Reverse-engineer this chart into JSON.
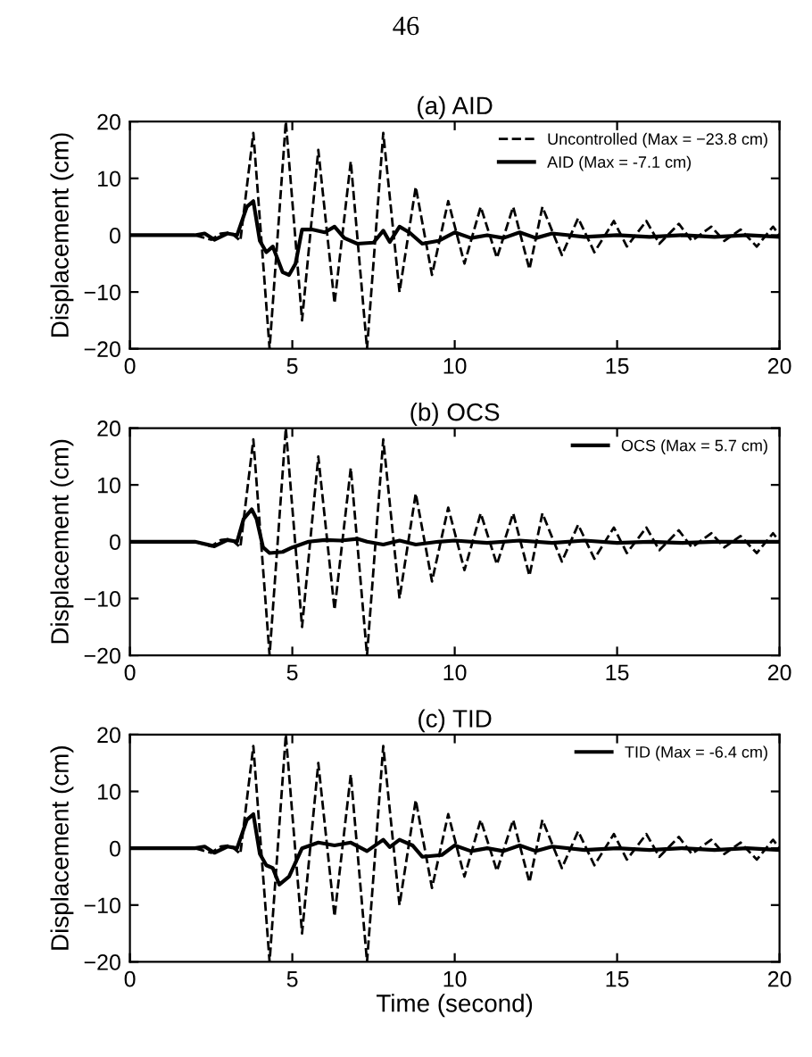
{
  "chart_data": [
    {
      "type": "line",
      "title": "(a) AID",
      "ylabel": "Displacement (cm)",
      "annotations": [
        "46"
      ],
      "xlim": [
        0,
        20
      ],
      "xticks": [
        0,
        5,
        10,
        15,
        20
      ],
      "ylim": [
        -20,
        20
      ],
      "yticks": [
        -20,
        -10,
        0,
        10,
        20
      ],
      "grid": false,
      "legend": "top right",
      "series": [
        {
          "name": "Uncontrolled (Max = −23.8 cm)",
          "color": "#000000",
          "line_style": "dashed",
          "x": [
            0,
            1,
            2,
            2.5,
            2.8,
            3.1,
            3.4,
            3.8,
            4.3,
            4.8,
            5.3,
            5.8,
            6.3,
            6.8,
            7.3,
            7.8,
            8.3,
            8.8,
            9.3,
            9.8,
            10.3,
            10.8,
            11.3,
            11.8,
            12.3,
            12.7,
            13.3,
            13.8,
            14.3,
            14.9,
            15.3,
            15.9,
            16.3,
            16.9,
            17.3,
            17.9,
            18.3,
            18.8,
            19.3,
            19.8,
            20
          ],
          "values": [
            0,
            0,
            0,
            -0.8,
            0.3,
            0.5,
            -1,
            18,
            -20,
            20,
            -15,
            15,
            -12,
            13,
            -20,
            18,
            -10,
            8.5,
            -7,
            6,
            -5,
            5,
            -4,
            5,
            -6,
            5,
            -3.5,
            3,
            -3,
            2.5,
            -2,
            2.5,
            -1.5,
            2,
            -1,
            1.5,
            -1,
            1,
            -2,
            1.5,
            0
          ]
        },
        {
          "name": "AID (Max = -7.1 cm)",
          "color": "#000000",
          "line_style": "solid",
          "x": [
            0,
            2,
            2.3,
            2.6,
            3.0,
            3.3,
            3.6,
            3.8,
            4.0,
            4.2,
            4.4,
            4.7,
            4.9,
            5.1,
            5.3,
            5.6,
            6.0,
            6.3,
            6.6,
            7.0,
            7.5,
            7.8,
            8.0,
            8.3,
            8.6,
            9.0,
            9.5,
            10,
            10.5,
            11,
            11.5,
            12,
            12.5,
            13,
            14,
            15,
            16,
            17,
            18,
            19,
            20
          ],
          "values": [
            0,
            0,
            0.3,
            -0.8,
            0.3,
            0,
            5,
            6,
            -1,
            -3,
            -2,
            -6.5,
            -7,
            -5,
            1,
            1,
            0.5,
            1.5,
            -0.5,
            -1.5,
            -1.3,
            0.8,
            -1.2,
            1.5,
            0.5,
            -1.5,
            -1,
            0.5,
            -0.5,
            0,
            -0.5,
            0.5,
            -0.5,
            0.3,
            -0.3,
            0,
            -0.3,
            0,
            -0.3,
            0,
            -0.3
          ]
        }
      ]
    },
    {
      "type": "line",
      "title": "(b) OCS",
      "ylabel": "Displacement (cm)",
      "xlim": [
        0,
        20
      ],
      "xticks": [
        0,
        5,
        10,
        15,
        20
      ],
      "ylim": [
        -20,
        20
      ],
      "yticks": [
        -20,
        -10,
        0,
        10,
        20
      ],
      "grid": false,
      "legend": "top right",
      "series": [
        {
          "color": "#000000",
          "line_style": "dashed",
          "x": [
            0,
            1,
            2,
            2.5,
            2.8,
            3.1,
            3.4,
            3.8,
            4.3,
            4.8,
            5.3,
            5.8,
            6.3,
            6.8,
            7.3,
            7.8,
            8.3,
            8.8,
            9.3,
            9.8,
            10.3,
            10.8,
            11.3,
            11.8,
            12.3,
            12.7,
            13.3,
            13.8,
            14.3,
            14.9,
            15.3,
            15.9,
            16.3,
            16.9,
            17.3,
            17.9,
            18.3,
            18.8,
            19.3,
            19.8,
            20
          ],
          "values": [
            0,
            0,
            0,
            -0.8,
            0.3,
            0.5,
            -1,
            18,
            -20,
            20,
            -15,
            15,
            -12,
            13,
            -20,
            18,
            -10,
            8.5,
            -7,
            6,
            -5,
            5,
            -4,
            5,
            -6,
            5,
            -3.5,
            3,
            -3,
            2.5,
            -2,
            2.5,
            -1.5,
            2,
            -1,
            1.5,
            -1,
            1,
            -2,
            1.5,
            0
          ]
        },
        {
          "name": "OCS (Max = 5.7 cm)",
          "color": "#000000",
          "line_style": "solid",
          "x": [
            0,
            2,
            2.6,
            3.0,
            3.3,
            3.5,
            3.75,
            3.9,
            4.1,
            4.3,
            4.7,
            5.0,
            5.5,
            6,
            6.5,
            7.0,
            7.3,
            7.8,
            8.3,
            8.8,
            9.5,
            10,
            11,
            12,
            13,
            14,
            15,
            16,
            17,
            18,
            19,
            20
          ],
          "values": [
            0,
            0,
            -0.8,
            0.3,
            0,
            4,
            5.7,
            4,
            -1,
            -2,
            -1.8,
            -1,
            0,
            0.3,
            0.2,
            0.5,
            0,
            -0.5,
            0.2,
            -0.5,
            0,
            0.2,
            -0.2,
            0.2,
            -0.2,
            0.2,
            -0.2,
            0,
            -0.2,
            0,
            0,
            0
          ]
        }
      ]
    },
    {
      "type": "line",
      "title": "(c) TID",
      "xlabel": "Time (second)",
      "ylabel": "Displacement (cm)",
      "xlim": [
        0,
        20
      ],
      "xticks": [
        0,
        5,
        10,
        15,
        20
      ],
      "ylim": [
        -20,
        20
      ],
      "yticks": [
        -20,
        -10,
        0,
        10,
        20
      ],
      "grid": false,
      "legend": "top right",
      "series": [
        {
          "color": "#000000",
          "line_style": "dashed",
          "x": [
            0,
            1,
            2,
            2.5,
            2.8,
            3.1,
            3.4,
            3.8,
            4.3,
            4.8,
            5.3,
            5.8,
            6.3,
            6.8,
            7.3,
            7.8,
            8.3,
            8.8,
            9.3,
            9.8,
            10.3,
            10.8,
            11.3,
            11.8,
            12.3,
            12.7,
            13.3,
            13.8,
            14.3,
            14.9,
            15.3,
            15.9,
            16.3,
            16.9,
            17.3,
            17.9,
            18.3,
            18.8,
            19.3,
            19.8,
            20
          ],
          "values": [
            0,
            0,
            0,
            -0.8,
            0.3,
            0.5,
            -1,
            18,
            -20,
            20,
            -15,
            15,
            -12,
            13,
            -20,
            18,
            -10,
            8.5,
            -7,
            6,
            -5,
            5,
            -4,
            5,
            -6,
            5,
            -3.5,
            3,
            -3,
            2.5,
            -2,
            2.5,
            -1.5,
            2,
            -1,
            1.5,
            -1,
            1,
            -2,
            1.5,
            0
          ]
        },
        {
          "name": "TID (Max = -6.4 cm)",
          "color": "#000000",
          "line_style": "solid",
          "x": [
            0,
            2,
            2.3,
            2.6,
            3.0,
            3.3,
            3.6,
            3.8,
            4.0,
            4.2,
            4.4,
            4.6,
            4.9,
            5.3,
            5.8,
            6.3,
            6.8,
            7.3,
            7.8,
            8.0,
            8.3,
            8.7,
            9.0,
            9.6,
            10,
            10.5,
            11,
            11.5,
            12,
            12.5,
            13,
            14,
            15,
            16,
            17,
            18,
            19,
            20
          ],
          "values": [
            0,
            0,
            0.3,
            -0.8,
            0.3,
            0,
            5,
            6,
            -1,
            -3,
            -3.5,
            -6.4,
            -5,
            0,
            1,
            0.5,
            1,
            -0.5,
            1.5,
            0.2,
            1.5,
            0.5,
            -1.5,
            -1.2,
            0.5,
            -0.5,
            0,
            -0.5,
            0.5,
            -0.5,
            0.3,
            -0.3,
            0,
            -0.3,
            0,
            -0.3,
            0,
            -0.3
          ]
        }
      ]
    }
  ]
}
